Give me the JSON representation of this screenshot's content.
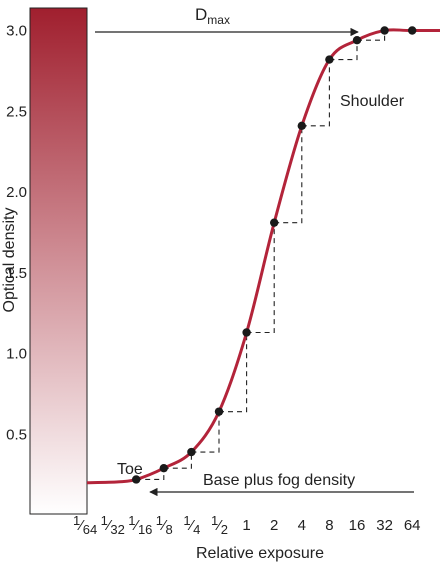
{
  "chart_data": {
    "type": "line",
    "title": "",
    "xlabel": "Relative exposure",
    "ylabel": "Optical density",
    "ylim": [
      0,
      3.0
    ],
    "y_ticks": [
      "0.5",
      "1.0",
      "1.5",
      "2.0",
      "2.5",
      "3.0"
    ],
    "x_tick_labels": [
      "1/64",
      "1/32",
      "1/16",
      "1/8",
      "1/4",
      "1/2",
      "1",
      "2",
      "4",
      "8",
      "16",
      "32",
      "64"
    ],
    "x_tick_display": [
      {
        "n": "1",
        "d": "64"
      },
      {
        "n": "1",
        "d": "32"
      },
      {
        "n": "1",
        "d": "16"
      },
      {
        "n": "1",
        "d": "8"
      },
      {
        "n": "1",
        "d": "4"
      },
      {
        "n": "1",
        "d": "2"
      },
      {
        "n": "1",
        "d": ""
      },
      {
        "n": "2",
        "d": ""
      },
      {
        "n": "4",
        "d": ""
      },
      {
        "n": "8",
        "d": ""
      },
      {
        "n": "16",
        "d": ""
      },
      {
        "n": "32",
        "d": ""
      },
      {
        "n": "64",
        "d": ""
      }
    ],
    "curve_color": "#b3243a",
    "density_scale_colors": [
      "#ffffff",
      "#a01f2e"
    ],
    "points": [
      {
        "x": "1/16",
        "y": 0.22
      },
      {
        "x": "1/8",
        "y": 0.29
      },
      {
        "x": "1/4",
        "y": 0.39
      },
      {
        "x": "1/2",
        "y": 0.64
      },
      {
        "x": "1",
        "y": 1.13
      },
      {
        "x": "2",
        "y": 1.81
      },
      {
        "x": "4",
        "y": 2.41
      },
      {
        "x": "8",
        "y": 2.82
      },
      {
        "x": "16",
        "y": 2.94
      },
      {
        "x": "32",
        "y": 3.0
      },
      {
        "x": "64",
        "y": 3.0
      },
      {
        "x": "128",
        "y": 3.0
      }
    ],
    "base_fog_density": 0.2,
    "d_max": 3.0,
    "annotations": {
      "dmax_prefix": "D",
      "dmax_sub": "max",
      "shoulder": "Shoulder",
      "toe": "Toe",
      "base_fog": "Base plus fog density"
    }
  }
}
